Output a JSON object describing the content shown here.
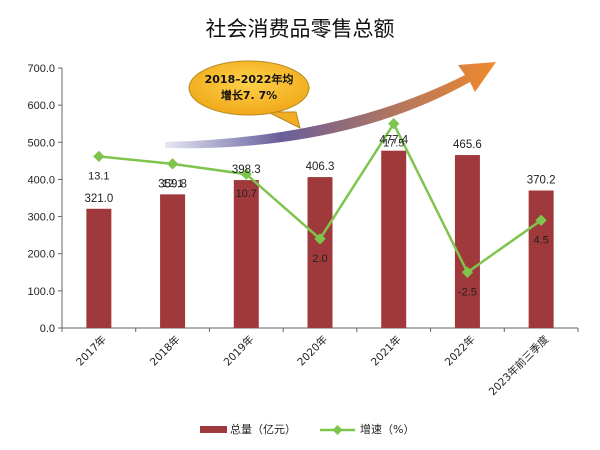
{
  "chart_data": {
    "type": "bar",
    "title": "社会消费品零售总额",
    "categories": [
      "2017年",
      "2018年",
      "2019年",
      "2020年",
      "2021年",
      "2022年",
      "2023年前三季度"
    ],
    "series": [
      {
        "name": "总量（亿元）",
        "type": "bar",
        "axis": "left",
        "values": [
          321.0,
          359.8,
          398.3,
          406.3,
          477.4,
          465.6,
          370.2
        ],
        "labels": [
          "321.0",
          "359.8",
          "398.3",
          "406.3",
          "477.4",
          "465.6",
          "370.2"
        ]
      },
      {
        "name": "增速（%）",
        "type": "line",
        "axis": "hidden",
        "values": [
          13.1,
          12.1,
          10.7,
          2.0,
          17.5,
          -2.5,
          4.5
        ],
        "labels": [
          "13.1",
          "12.1",
          "10.7",
          "2.0",
          "17.5",
          "-2.5",
          "4.5"
        ]
      }
    ],
    "ylim": [
      0,
      700
    ],
    "yticks": [
      "0.0",
      "100.0",
      "200.0",
      "300.0",
      "400.0",
      "500.0",
      "600.0",
      "700.0"
    ],
    "secondary_ylim": [
      -10,
      25
    ],
    "legend_position": "bottom",
    "annotation": {
      "line1": "2018–2022年均",
      "line2": "增长7. 7%"
    },
    "colors": {
      "bar": "#a0393b",
      "line": "#7ec44d",
      "bubble": "#f5b830",
      "arrow_start": "#5a5fa8",
      "arrow_end": "#f08a2c"
    }
  }
}
